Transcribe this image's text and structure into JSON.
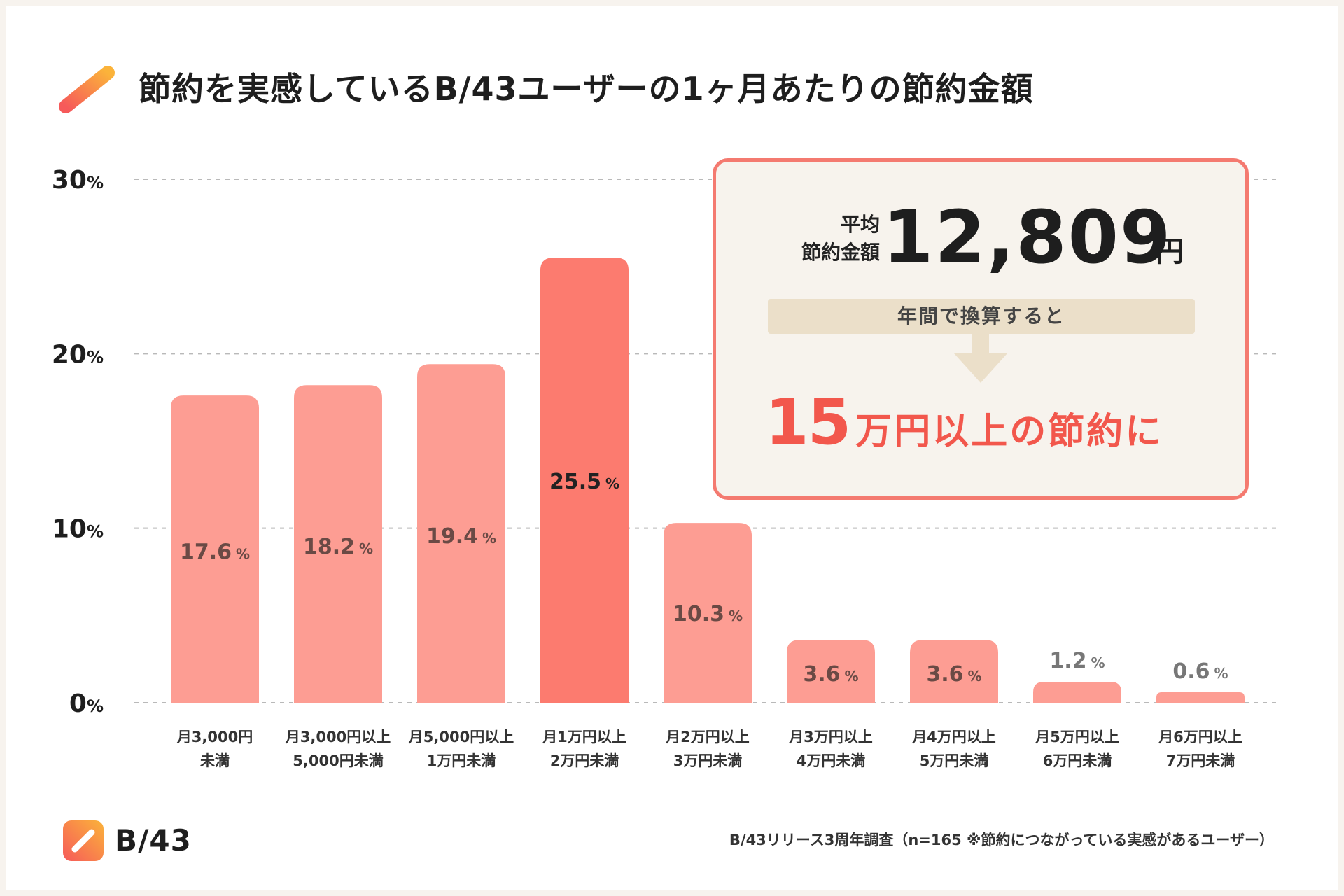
{
  "title": "節約を実感しているB/43ユーザーの1ヶ月あたりの節約金額",
  "chart_data": {
    "type": "bar",
    "title": "節約を実感しているB/43ユーザーの1ヶ月あたりの節約金額",
    "categories": [
      [
        "月3,000円",
        "未満"
      ],
      [
        "月3,000円以上",
        "5,000円未満"
      ],
      [
        "月5,000円以上",
        "1万円未満"
      ],
      [
        "月1万円以上",
        "2万円未満"
      ],
      [
        "月2万円以上",
        "3万円未満"
      ],
      [
        "月3万円以上",
        "4万円未満"
      ],
      [
        "月4万円以上",
        "5万円未満"
      ],
      [
        "月5万円以上",
        "6万円未満"
      ],
      [
        "月6万円以上",
        "7万円未満"
      ]
    ],
    "values": [
      17.6,
      18.2,
      19.4,
      25.5,
      10.3,
      3.6,
      3.6,
      1.2,
      0.6
    ],
    "value_labels": [
      "17.6",
      "18.2",
      "19.4",
      "25.5",
      "10.3",
      "3.6",
      "3.6",
      "1.2",
      "0.6"
    ],
    "value_unit": "%",
    "highlight_index": 3,
    "yticks": [
      "0",
      "10",
      "20",
      "30"
    ],
    "ytick_values": [
      0,
      10,
      20,
      30
    ],
    "ytick_unit": "%",
    "ylim": [
      0,
      30
    ],
    "xlabel": "",
    "ylabel": "",
    "grid": true,
    "colors": {
      "bar": "#fd9d93",
      "highlight": "#fc7b6f",
      "grid": "#b9b9b9",
      "label": "#6a4a45"
    }
  },
  "summary": {
    "avg_label_line1": "平均",
    "avg_label_line2": "節約金額",
    "avg_value": "12,809",
    "avg_unit": "円",
    "annual_label": "年間で換算すると",
    "result_number": "15",
    "result_text": "万円以上の節約に",
    "accent_color": "#f2574c"
  },
  "footer": {
    "logo_text": "B/43",
    "logo_icon": "b43-logo-icon",
    "source": "B/43リリース3周年調査（n=165 ※節約につながっている実感があるユーザー）"
  }
}
